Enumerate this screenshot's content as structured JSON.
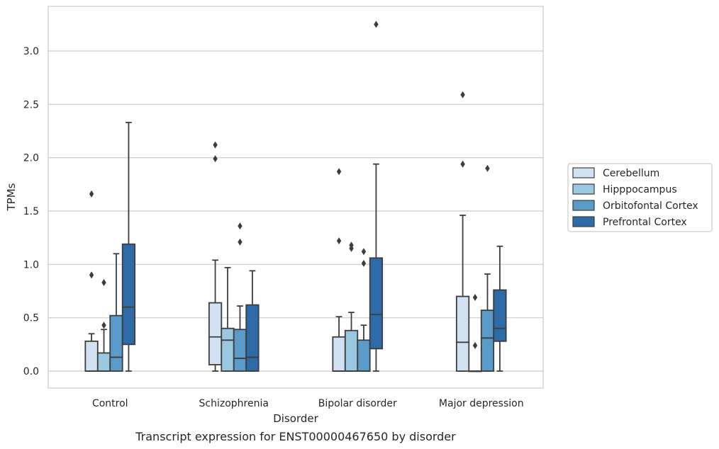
{
  "chart_data": {
    "type": "box",
    "title": "",
    "caption": "Transcript expression for ENST00000467650 by disorder",
    "xlabel": "Disorder",
    "ylabel": "TPMs",
    "ylim": [
      -0.15,
      3.42
    ],
    "yticks": [
      "0.0",
      "0.5",
      "1.0",
      "1.5",
      "2.0",
      "2.5",
      "3.0"
    ],
    "grid": "horizontal",
    "legend_position": "right",
    "categories": [
      "Control",
      "Schizophrenia",
      "Bipolar disorder",
      "Major depression"
    ],
    "series": [
      {
        "name": "Cerebellum",
        "color": "#d1e2f2",
        "boxes": [
          {
            "whislo": 0.0,
            "q1": 0.0,
            "med": 0.0,
            "q3": 0.28,
            "whishi": 0.35,
            "fliers": [
              0.9,
              1.66
            ]
          },
          {
            "whislo": 0.0,
            "q1": 0.06,
            "med": 0.32,
            "q3": 0.64,
            "whishi": 1.04,
            "fliers": [
              1.99,
              2.12
            ]
          },
          {
            "whislo": 0.0,
            "q1": 0.0,
            "med": 0.0,
            "q3": 0.32,
            "whishi": 0.51,
            "fliers": [
              1.22,
              1.87
            ]
          },
          {
            "whislo": 0.0,
            "q1": 0.0,
            "med": 0.27,
            "q3": 0.7,
            "whishi": 1.46,
            "fliers": [
              1.94,
              2.59
            ]
          }
        ]
      },
      {
        "name": "Hipppocampus",
        "color": "#9ac8e0",
        "boxes": [
          {
            "whislo": 0.0,
            "q1": 0.0,
            "med": 0.0,
            "q3": 0.17,
            "whishi": 0.39,
            "fliers": [
              0.43,
              0.83
            ]
          },
          {
            "whislo": 0.0,
            "q1": 0.0,
            "med": 0.29,
            "q3": 0.4,
            "whishi": 0.97,
            "fliers": []
          },
          {
            "whislo": 0.0,
            "q1": 0.0,
            "med": 0.0,
            "q3": 0.38,
            "whishi": 0.55,
            "fliers": [
              1.15,
              1.18
            ]
          },
          {
            "whislo": 0.0,
            "q1": 0.0,
            "med": 0.0,
            "q3": 0.0,
            "whishi": 0.0,
            "fliers": [
              0.24,
              0.69
            ]
          }
        ]
      },
      {
        "name": "Orbitofontal Cortex",
        "color": "#5a9bc9",
        "boxes": [
          {
            "whislo": 0.0,
            "q1": 0.0,
            "med": 0.13,
            "q3": 0.52,
            "whishi": 1.1,
            "fliers": []
          },
          {
            "whislo": 0.0,
            "q1": 0.0,
            "med": 0.12,
            "q3": 0.39,
            "whishi": 0.61,
            "fliers": [
              1.21,
              1.36
            ]
          },
          {
            "whislo": 0.0,
            "q1": 0.0,
            "med": 0.0,
            "q3": 0.29,
            "whishi": 0.43,
            "fliers": [
              1.01,
              1.12
            ]
          },
          {
            "whislo": 0.0,
            "q1": 0.0,
            "med": 0.31,
            "q3": 0.57,
            "whishi": 0.91,
            "fliers": [
              1.9
            ]
          }
        ]
      },
      {
        "name": "Prefrontal Cortex",
        "color": "#2c6aa8",
        "boxes": [
          {
            "whislo": 0.0,
            "q1": 0.25,
            "med": 0.6,
            "q3": 1.19,
            "whishi": 2.33,
            "fliers": []
          },
          {
            "whislo": 0.0,
            "q1": 0.0,
            "med": 0.13,
            "q3": 0.62,
            "whishi": 0.94,
            "fliers": []
          },
          {
            "whislo": 0.0,
            "q1": 0.21,
            "med": 0.53,
            "q3": 1.06,
            "whishi": 1.94,
            "fliers": [
              3.25
            ]
          },
          {
            "whislo": 0.0,
            "q1": 0.28,
            "med": 0.4,
            "q3": 0.76,
            "whishi": 1.17,
            "fliers": []
          }
        ]
      }
    ]
  }
}
